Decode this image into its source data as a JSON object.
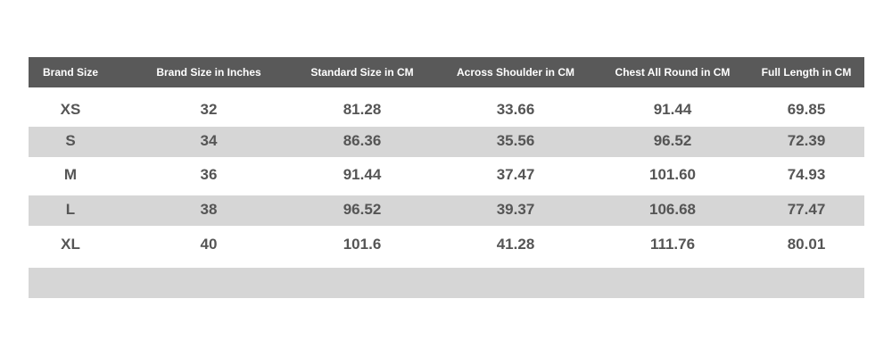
{
  "table": {
    "columns": [
      "Brand Size",
      "Brand Size in Inches",
      "Standard Size in CM",
      "Across Shoulder in CM",
      "Chest All Round in CM",
      "Full Length in CM"
    ],
    "rows": [
      [
        "XS",
        "32",
        "81.28",
        "33.66",
        "91.44",
        "69.85"
      ],
      [
        "S",
        "34",
        "86.36",
        "35.56",
        "96.52",
        "72.39"
      ],
      [
        "M",
        "36",
        "91.44",
        "37.47",
        "101.60",
        "74.93"
      ],
      [
        "L",
        "38",
        "96.52",
        "39.37",
        "106.68",
        "77.47"
      ],
      [
        "XL",
        "40",
        "101.6",
        "41.28",
        "111.76",
        "80.01"
      ]
    ]
  }
}
